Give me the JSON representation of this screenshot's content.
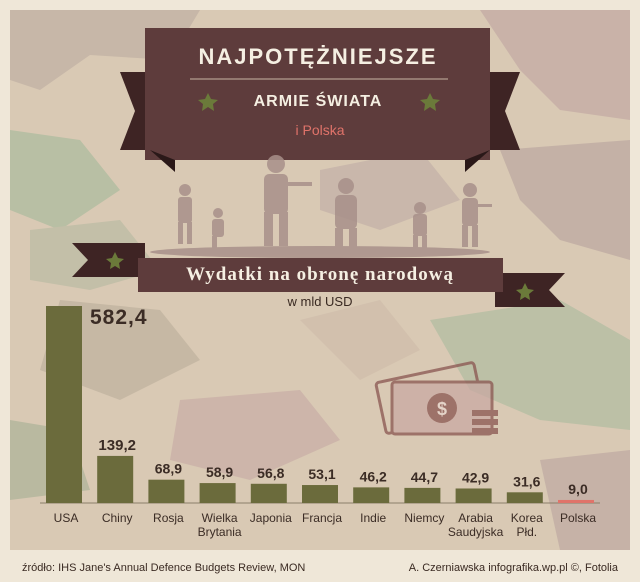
{
  "header": {
    "title_line1": "NAJPOTĘŻNIEJSZE",
    "title_line2": "ARMIE ŚWIATA",
    "title_line3": "i Polska"
  },
  "subtitle": "Wydatki na obronę narodową",
  "unit": "w mld USD",
  "footer": {
    "source": "źródło: IHS Jane's Annual Defence Budgets Review, MON",
    "credit": "A. Czerniawska infografika.wp.pl ©, Fotolia"
  },
  "colors": {
    "bar": "#6b6b3c",
    "highlight": "#e0736a",
    "ribbon": "#5e3c3c",
    "ribbon_dark": "#3e2424",
    "star": "#6b7a3a"
  },
  "chart_data": {
    "type": "bar",
    "title": "Wydatki na obronę narodową",
    "ylabel": "w mld USD",
    "categories": [
      "USA",
      "Chiny",
      "Rosja",
      "Wielka Brytania",
      "Japonia",
      "Francja",
      "Indie",
      "Niemcy",
      "Arabia Saudyjska",
      "Korea Płd.",
      "Polska"
    ],
    "category_lines": [
      [
        "USA"
      ],
      [
        "Chiny"
      ],
      [
        "Rosja"
      ],
      [
        "Wielka",
        "Brytania"
      ],
      [
        "Japonia"
      ],
      [
        "Francja"
      ],
      [
        "Indie"
      ],
      [
        "Niemcy"
      ],
      [
        "Arabia",
        "Saudyjska"
      ],
      [
        "Korea",
        "Płd."
      ],
      [
        "Polska"
      ]
    ],
    "values": [
      582.4,
      139.2,
      68.9,
      58.9,
      56.8,
      53.1,
      46.2,
      44.7,
      42.9,
      31.6,
      9.0
    ],
    "value_labels": [
      "582,4",
      "139,2",
      "68,9",
      "58,9",
      "56,8",
      "53,1",
      "46,2",
      "44,7",
      "42,9",
      "31,6",
      "9,0"
    ],
    "highlight_index": 10,
    "ylim": [
      0,
      582.4
    ],
    "grid": false
  }
}
